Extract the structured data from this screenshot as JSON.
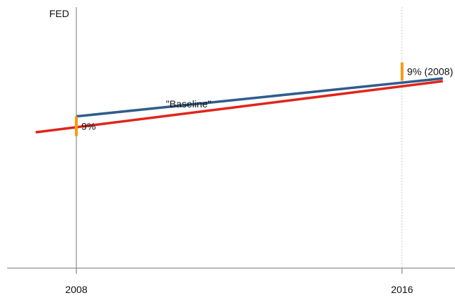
{
  "chart_data": {
    "type": "line",
    "ylabel": "FED",
    "x_ticks": [
      "2008",
      "2016"
    ],
    "series": [
      {
        "name": "\"Baseline\"",
        "color": "#e0251b",
        "x": [
          2007,
          2017
        ],
        "y": [
          0.895,
          1.232
        ]
      },
      {
        "name": "",
        "color": "#2f5d8c",
        "x": [
          2008,
          2017
        ],
        "y": [
          1.0,
          1.25
        ]
      }
    ],
    "annotations": [
      {
        "label": "9%",
        "x": 2008,
        "y_from": 1.0,
        "y_to": 0.87,
        "color": "#f39c12"
      },
      {
        "label": "9% (2008)",
        "x": 2016,
        "y_from": 1.355,
        "y_to": 1.235,
        "color": "#f39c12"
      }
    ],
    "xlim": [
      2006.3,
      2017.3
    ],
    "ylim": [
      0.0,
      1.72
    ],
    "grid": false,
    "colors": {
      "axis": "#777777",
      "dashed_guide": "#cccccc",
      "marker": "#f39c12"
    }
  }
}
